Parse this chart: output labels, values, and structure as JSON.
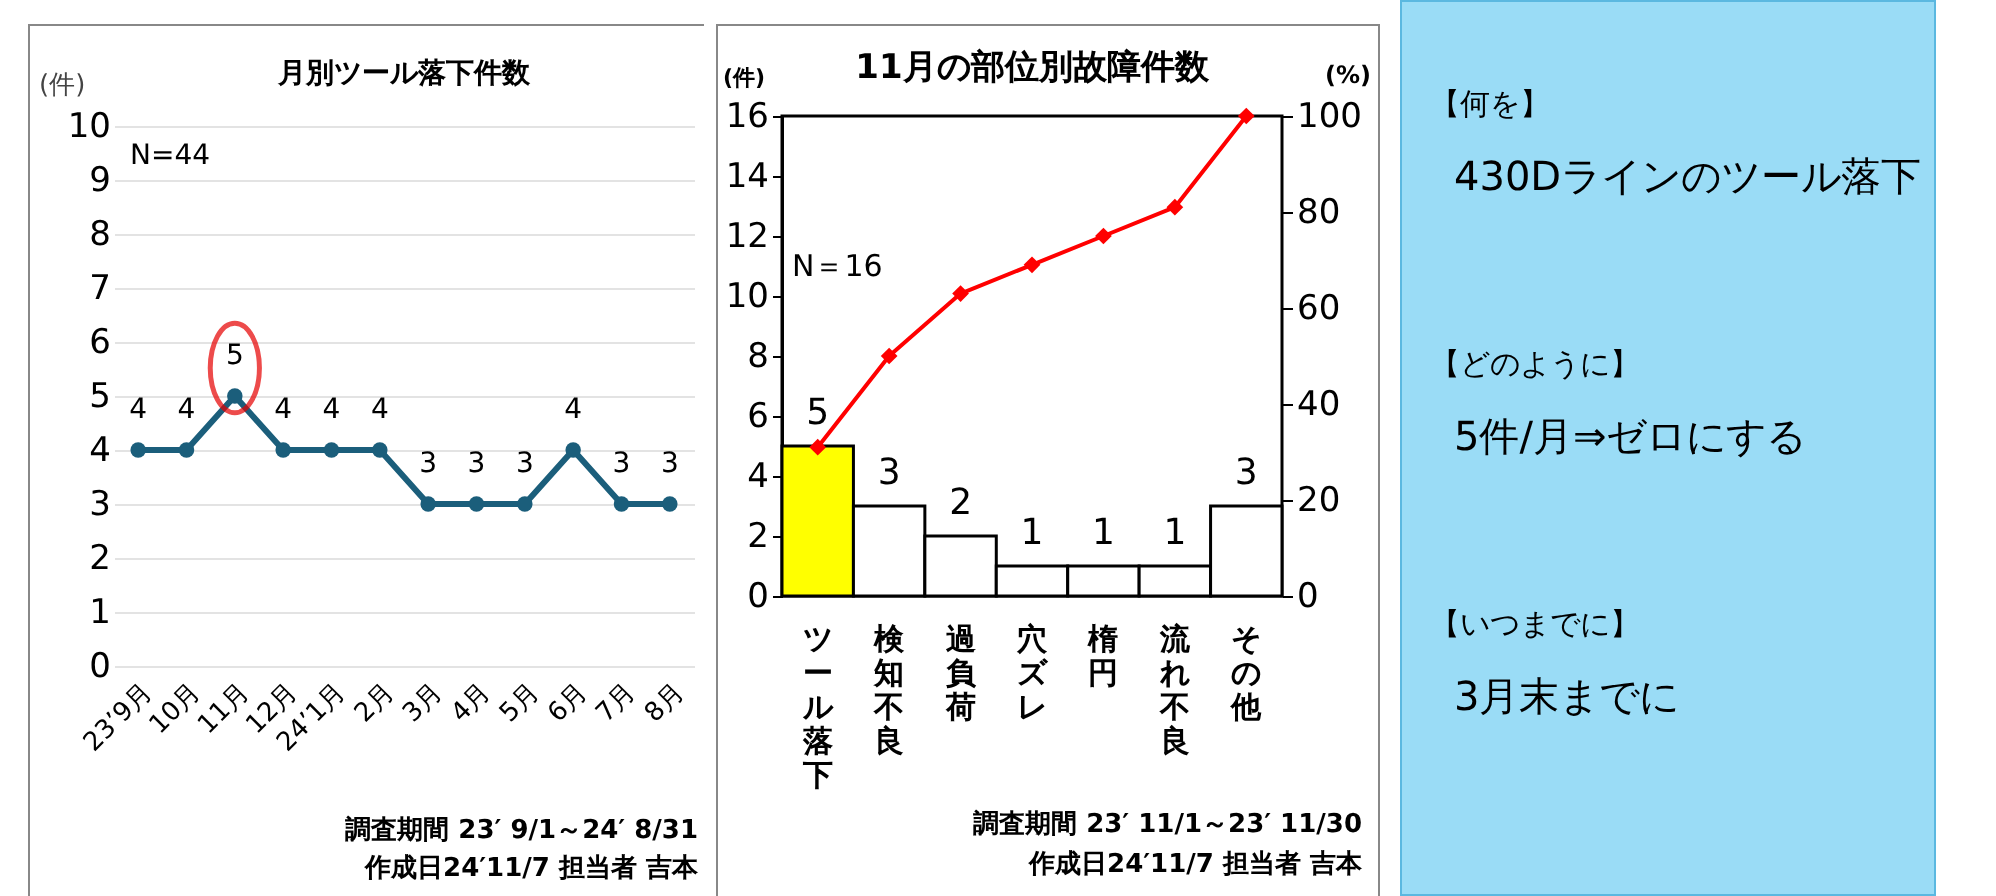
{
  "chart_data": [
    {
      "type": "line",
      "title": "月別ツール落下件数",
      "ylabel": "(件)",
      "categories": [
        "23’9月",
        "10月",
        "11月",
        "12月",
        "24’1月",
        "2月",
        "3月",
        "4月",
        "5月",
        "6月",
        "7月",
        "8月"
      ],
      "values": [
        4,
        4,
        5,
        4,
        4,
        4,
        3,
        3,
        3,
        4,
        3,
        3
      ],
      "color": "#1b5e7b",
      "marker": "circle",
      "data_labels": true,
      "grid": "y",
      "ylim": [
        0,
        10
      ],
      "yticks": [
        0,
        1,
        2,
        3,
        4,
        5,
        6,
        7,
        8,
        9,
        10
      ],
      "annotations": [
        "N=44",
        "調査期間  23′ 9/1～24′ 8/31",
        "作成日24′11/7  担当者 吉本"
      ]
    },
    {
      "type": "bar",
      "title": "11月の部位別故障件数",
      "ylabel": "(件)",
      "y2label": "(%)",
      "categories": [
        "ツール落下",
        "検知不良",
        "過負荷",
        "穴ズレ",
        "楕円",
        "流れ不良",
        "その他"
      ],
      "series": [
        {
          "type": "bar",
          "colors": [
            "#ffff00",
            "#ffffff",
            "#ffffff",
            "#ffffff",
            "#ffffff",
            "#ffffff",
            "#ffffff"
          ],
          "values": [
            5,
            3,
            2,
            1,
            1,
            1,
            3
          ],
          "value_labels": [
            "5",
            "3",
            "2",
            "1",
            "1",
            "1",
            "3"
          ]
        },
        {
          "type": "line",
          "axis": "y2",
          "color": "#ff0000",
          "marker": "diamond",
          "values": [
            31,
            50,
            63,
            69,
            75,
            81,
            100
          ]
        }
      ],
      "ylim": [
        0,
        16
      ],
      "yticks": [
        0,
        2,
        4,
        6,
        8,
        10,
        12,
        14,
        16
      ],
      "y2lim": [
        0,
        100
      ],
      "y2ticks": [
        0,
        20,
        40,
        60,
        80,
        100
      ],
      "annotations": [
        "N＝16",
        "調査期間  23′ 11/1～23′ 11/30",
        "作成日24′11/7  担当者 吉本"
      ]
    },
    {
      "type": "other",
      "annotations": [
        "【何を】",
        "430Dラインのツール落下",
        "【どのように】",
        "5件/月⇒ゼロにする",
        "【いつまでに】",
        "3月末までに"
      ]
    }
  ]
}
